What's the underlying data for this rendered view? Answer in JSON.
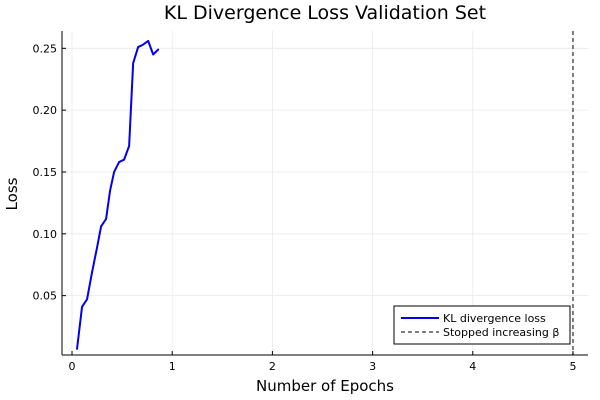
{
  "chart_data": {
    "type": "line",
    "title": "KL Divergence Loss Validation Set",
    "xlabel": "Number of Epochs",
    "ylabel": "Loss",
    "xlim": [
      -0.1,
      5.15
    ],
    "ylim": [
      0.002,
      0.264
    ],
    "xticks": [
      {
        "value": 0,
        "label": "0"
      },
      {
        "value": 1,
        "label": "1"
      },
      {
        "value": 2,
        "label": "2"
      },
      {
        "value": 3,
        "label": "3"
      },
      {
        "value": 4,
        "label": "4"
      },
      {
        "value": 5,
        "label": "5"
      }
    ],
    "yticks": [
      {
        "value": 0.05,
        "label": "0.05"
      },
      {
        "value": 0.1,
        "label": "0.10"
      },
      {
        "value": 0.15,
        "label": "0.15"
      },
      {
        "value": 0.2,
        "label": "0.20"
      },
      {
        "value": 0.25,
        "label": "0.25"
      }
    ],
    "grid": true,
    "legend_position": "bottom-right",
    "series": [
      {
        "name": "KL divergence loss",
        "color": "#0000ee",
        "style": "solid",
        "x": [
          0.05,
          0.1,
          0.15,
          0.2,
          0.25,
          0.29,
          0.34,
          0.38,
          0.42,
          0.47,
          0.52,
          0.57,
          0.61,
          0.66,
          0.71,
          0.76,
          0.81,
          0.86
        ],
        "y": [
          0.007,
          0.041,
          0.047,
          0.069,
          0.089,
          0.106,
          0.112,
          0.135,
          0.15,
          0.158,
          0.16,
          0.171,
          0.238,
          0.251,
          0.253,
          0.256,
          0.245,
          0.249
        ]
      },
      {
        "name": "Stopped increasing β",
        "color": "#555555",
        "style": "dashed",
        "vline_x": 5
      }
    ]
  }
}
